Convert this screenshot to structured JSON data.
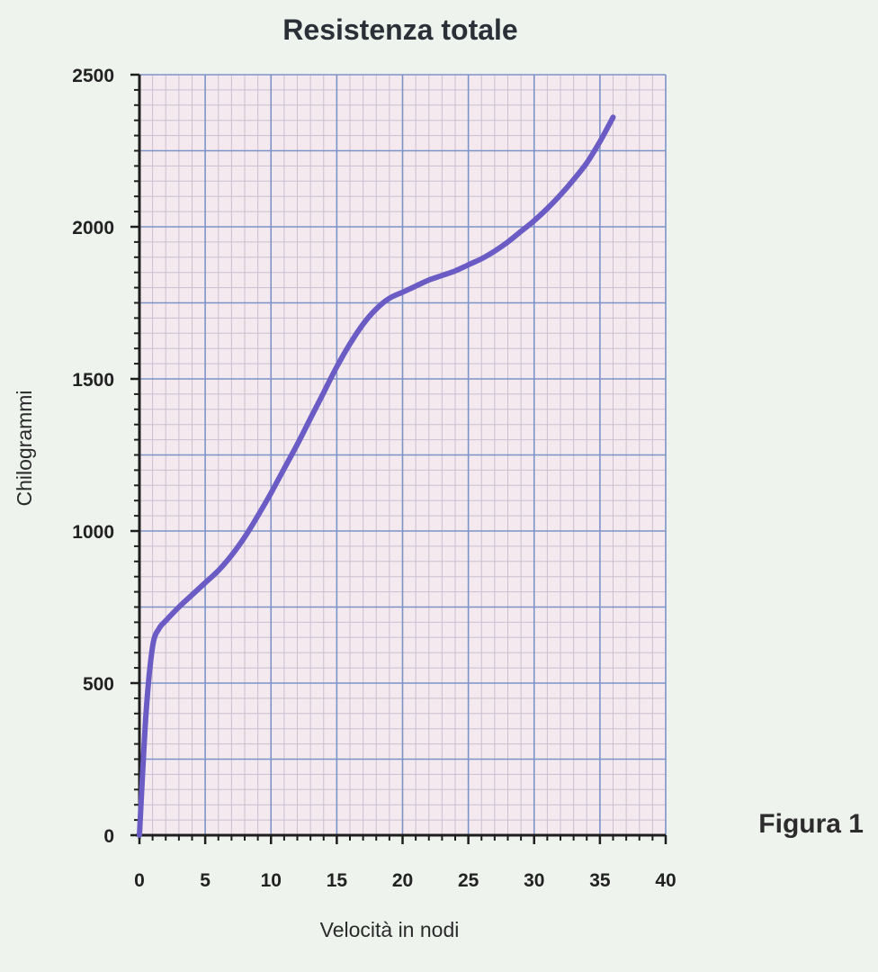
{
  "figure_label": "Figura  1",
  "colors": {
    "line": "#6a5cc4",
    "major_grid": "#7d93c8",
    "minor_grid": "#cbbfd0",
    "plot_bg": "#f3e9ee",
    "axis": "#1e1e1e"
  },
  "chart_data": {
    "type": "line",
    "title": "Resistenza totale",
    "xlabel": "Velocità in nodi",
    "ylabel": "Chilogrammi",
    "xlim": [
      0,
      40
    ],
    "ylim": [
      0,
      2500
    ],
    "grid": true,
    "x_ticks": [
      "0",
      "5",
      "10",
      "15",
      "20",
      "25",
      "30",
      "35",
      "40"
    ],
    "y_ticks": [
      "0",
      "500",
      "1000",
      "1500",
      "2000",
      "2500"
    ],
    "series": [
      {
        "x": [
          0,
          0.5,
          1,
          1.5,
          2,
          3,
          4,
          5,
          6,
          7,
          8,
          9,
          10,
          11,
          12,
          13,
          14,
          15,
          16,
          17,
          18,
          19,
          20,
          21,
          22,
          23,
          24,
          25,
          26,
          27,
          28,
          29,
          30,
          31,
          32,
          33,
          34,
          35,
          36
        ],
        "values": [
          0,
          400,
          620,
          680,
          705,
          750,
          790,
          830,
          870,
          920,
          980,
          1050,
          1125,
          1205,
          1285,
          1370,
          1455,
          1540,
          1615,
          1680,
          1730,
          1765,
          1785,
          1805,
          1825,
          1840,
          1855,
          1875,
          1895,
          1920,
          1950,
          1985,
          2020,
          2060,
          2105,
          2155,
          2210,
          2280,
          2360
        ]
      }
    ]
  }
}
